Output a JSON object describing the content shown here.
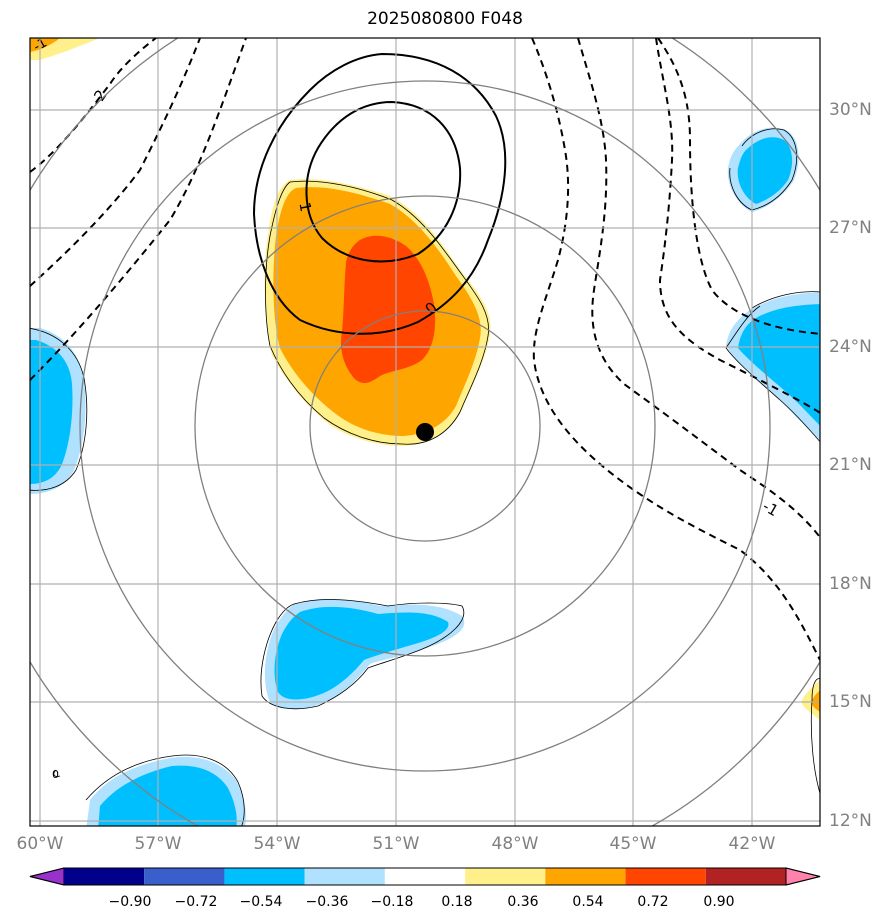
{
  "title": "2025080800 F048",
  "colors": {
    "blue": "#00bfff",
    "light_blue": "#b0e2ff",
    "yellow": "#fff08c",
    "orange": "#ffa500",
    "red_orange": "#ff4500",
    "gridline": "#b0b0b0",
    "range_ring": "#808080"
  },
  "map": {
    "lon_labels": [
      "60°W",
      "57°W",
      "54°W",
      "51°W",
      "48°W",
      "45°W",
      "42°W"
    ],
    "lat_labels": [
      "30°N",
      "27°N",
      "24°N",
      "21°N",
      "18°N",
      "15°N",
      "12°N"
    ],
    "contour_labels": [
      "1",
      "0",
      "-2",
      "-1",
      "0",
      "-1"
    ],
    "center_marker": "black-dot"
  },
  "colorbar": {
    "colors": [
      "#9932cc",
      "#00008b",
      "#3a5fcd",
      "#00bfff",
      "#b0e2ff",
      "#ffffff",
      "#fff08c",
      "#ffa500",
      "#ff4500",
      "#b22222",
      "#ff82ab"
    ],
    "tick_labels": [
      "−0.90",
      "−0.72",
      "−0.54",
      "−0.36",
      "−0.18",
      "0.18",
      "0.36",
      "0.54",
      "0.72",
      "0.90"
    ]
  }
}
